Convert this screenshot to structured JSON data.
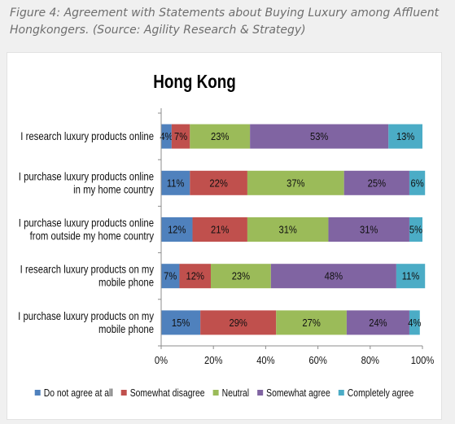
{
  "figure": {
    "caption": "Figure 4: Agreement with Statements about Buying Luxury among Affluent Hongkongers. (Source: Agility Research & Strategy)"
  },
  "chart_data": {
    "type": "bar",
    "orientation": "horizontal",
    "stacked": true,
    "normalized": true,
    "title": "Hong Kong",
    "categories": [
      "I research luxury products online",
      "I purchase luxury products online in my home country",
      "I purchase luxury products online from outside my home country",
      "I research luxury products on my mobile phone",
      "I purchase luxury products on my mobile phone"
    ],
    "category_lines": [
      [
        "I research luxury products online"
      ],
      [
        "I purchase luxury products online",
        "in my home country"
      ],
      [
        "I purchase luxury products online",
        "from outside my home country"
      ],
      [
        "I research luxury products on my",
        "mobile phone"
      ],
      [
        "I purchase luxury products on my",
        "mobile phone"
      ]
    ],
    "series": [
      {
        "name": "Do not agree at all",
        "color": "#4f81bd",
        "values": [
          4,
          11,
          12,
          7,
          15
        ]
      },
      {
        "name": "Somewhat disagree",
        "color": "#c0504d",
        "values": [
          7,
          22,
          21,
          12,
          29
        ]
      },
      {
        "name": "Neutral",
        "color": "#9bbb59",
        "values": [
          23,
          37,
          31,
          23,
          27
        ]
      },
      {
        "name": "Somewhat agree",
        "color": "#8064a2",
        "values": [
          53,
          25,
          31,
          48,
          24
        ]
      },
      {
        "name": "Completely agree",
        "color": "#4bacc6",
        "values": [
          13,
          6,
          5,
          11,
          4
        ]
      }
    ],
    "value_suffix": "%",
    "xlim": [
      0,
      100
    ],
    "xticks": [
      "0%",
      "20%",
      "40%",
      "60%",
      "80%",
      "100%"
    ],
    "xlabel": "",
    "ylabel": "",
    "grid": false,
    "legend_position": "bottom"
  }
}
